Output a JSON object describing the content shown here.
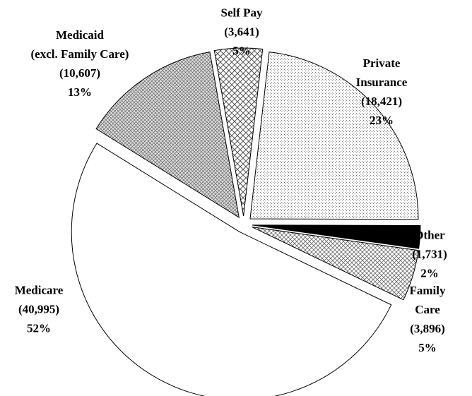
{
  "chart_data": {
    "type": "pie",
    "categories": [
      "Self Pay",
      "Private Insurance",
      "Other",
      "Family Care",
      "Medicare",
      "Medicaid\n(excl. Family Care)"
    ],
    "values": [
      3641,
      18421,
      1731,
      3896,
      40995,
      10607
    ],
    "value_labels": [
      "(3,641)",
      "(18,421)",
      "(1,731)",
      "(3,896)",
      "(40,995)",
      "(10,607)"
    ],
    "percents": [
      5,
      23,
      2,
      5,
      52,
      13
    ],
    "percent_labels": [
      "5%",
      "23%",
      "2%",
      "5%",
      "52%",
      "13%"
    ]
  }
}
